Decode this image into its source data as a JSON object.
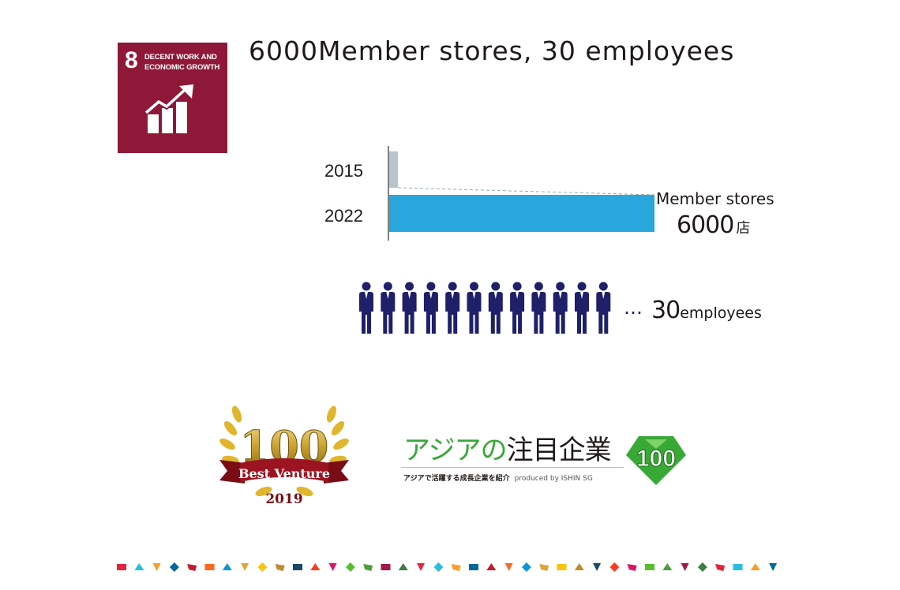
{
  "sdg_badge": {
    "number": "8",
    "label_line1": "DECENT WORK AND",
    "label_line2": "ECONOMIC GROWTH",
    "icon": "growth-chart-icon",
    "color": "#8f1838"
  },
  "headline": "6000Member stores, 30 employees",
  "chart_data": {
    "type": "bar",
    "orientation": "horizontal",
    "categories": [
      "2015",
      "2022"
    ],
    "series": [
      {
        "values": [
          null,
          6000
        ]
      }
    ],
    "colors": {
      "2015": "#b9c3cb",
      "2022": "#29a6dc"
    },
    "annotation": {
      "caption": "Member stores",
      "value": "6000",
      "unit": "店"
    }
  },
  "employees": {
    "dots": "…",
    "count": "30",
    "word": "employees",
    "icon": "businessman-icon",
    "icon_color": "#1f1f6a"
  },
  "awards": {
    "venture": {
      "number": "100",
      "ribbon": "Best Venture",
      "year": "2019"
    },
    "asia": {
      "title_green": "アジアの",
      "title_dark": "注目企業",
      "subtitle": "アジアで活躍する成長企業を紹介",
      "produced": "produced by ISHIN SG",
      "badge": "100"
    }
  }
}
